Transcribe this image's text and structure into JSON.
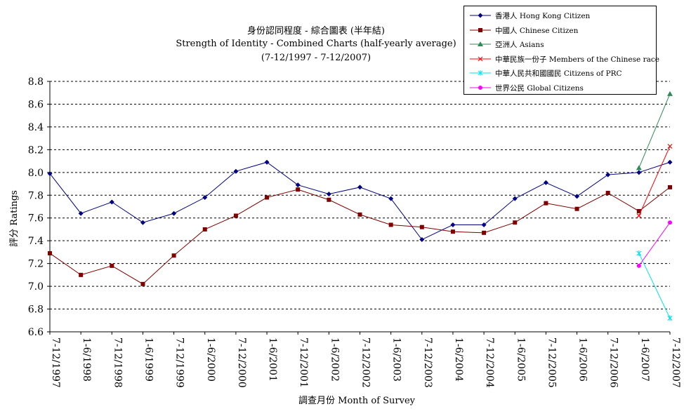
{
  "chart_data": {
    "type": "line",
    "title": "身份認同程度 - 綜合圖表 (半年結)",
    "subtitle": "Strength of Identity - Combined Charts (half-yearly average)",
    "subtitle2": "(7-12/1997 - 7-12/2007)",
    "xlabel": "調查月份 Month of Survey",
    "ylabel": "評分 Ratings",
    "ylim": [
      6.6,
      8.8
    ],
    "ytick_step": 0.2,
    "ytick_labels": [
      "6.6",
      "6.8",
      "7.0",
      "7.2",
      "7.4",
      "7.6",
      "7.8",
      "8.0",
      "8.2",
      "8.4",
      "8.6",
      "8.8"
    ],
    "grid": "horizontal dashed",
    "legend_position": "top-right",
    "categories": [
      "7-12/1997",
      "1-6/1998",
      "7-12/1998",
      "1-6/1999",
      "7-12/1999",
      "1-6/2000",
      "7-12/2000",
      "1-6/2001",
      "7-12/2001",
      "1-6/2002",
      "7-12/2002",
      "1-6/2003",
      "7-12/2003",
      "1-6/2004",
      "7-12/2004",
      "1-6/2005",
      "7-12/2005",
      "1-6/2006",
      "7-12/2006",
      "1-6/2007",
      "7-12/2007"
    ],
    "series": [
      {
        "name": "香港人 Hong Kong Citizen",
        "color": "#000080",
        "marker": "diamond",
        "values": [
          7.99,
          7.64,
          7.74,
          7.56,
          7.64,
          7.78,
          8.01,
          8.09,
          7.89,
          7.81,
          7.87,
          7.77,
          7.41,
          7.54,
          7.54,
          7.77,
          7.91,
          7.79,
          7.98,
          8.0,
          8.09
        ]
      },
      {
        "name": "中國人 Chinese Citizen",
        "color": "#800000",
        "marker": "square",
        "values": [
          7.29,
          7.1,
          7.18,
          7.02,
          7.27,
          7.5,
          7.62,
          7.78,
          7.85,
          7.76,
          7.63,
          7.54,
          7.52,
          7.48,
          7.47,
          7.56,
          7.73,
          7.68,
          7.82,
          7.66,
          7.87
        ]
      },
      {
        "name": "亞洲人 Asians",
        "color": "#2e8b57",
        "marker": "triangle",
        "values": [
          null,
          null,
          null,
          null,
          null,
          null,
          null,
          null,
          null,
          null,
          null,
          null,
          null,
          null,
          null,
          null,
          null,
          null,
          null,
          8.04,
          8.69
        ]
      },
      {
        "name": "中華民族一份子 Members of the Chinese race",
        "color": "#ff0000",
        "marker": "x",
        "values": [
          null,
          null,
          null,
          null,
          null,
          null,
          null,
          null,
          null,
          null,
          null,
          null,
          null,
          null,
          null,
          null,
          null,
          null,
          null,
          7.62,
          8.23
        ]
      },
      {
        "name": "中華人民共和國國民 Citizens of PRC",
        "color": "#00e5ee",
        "marker": "star",
        "values": [
          null,
          null,
          null,
          null,
          null,
          null,
          null,
          null,
          null,
          null,
          null,
          null,
          null,
          null,
          null,
          null,
          null,
          null,
          null,
          7.29,
          6.72
        ]
      },
      {
        "name": "世界公民 Global Citizens",
        "color": "#ff00ff",
        "marker": "circle",
        "values": [
          null,
          null,
          null,
          null,
          null,
          null,
          null,
          null,
          null,
          null,
          null,
          null,
          null,
          null,
          null,
          null,
          null,
          null,
          null,
          7.18,
          7.56
        ]
      }
    ]
  }
}
